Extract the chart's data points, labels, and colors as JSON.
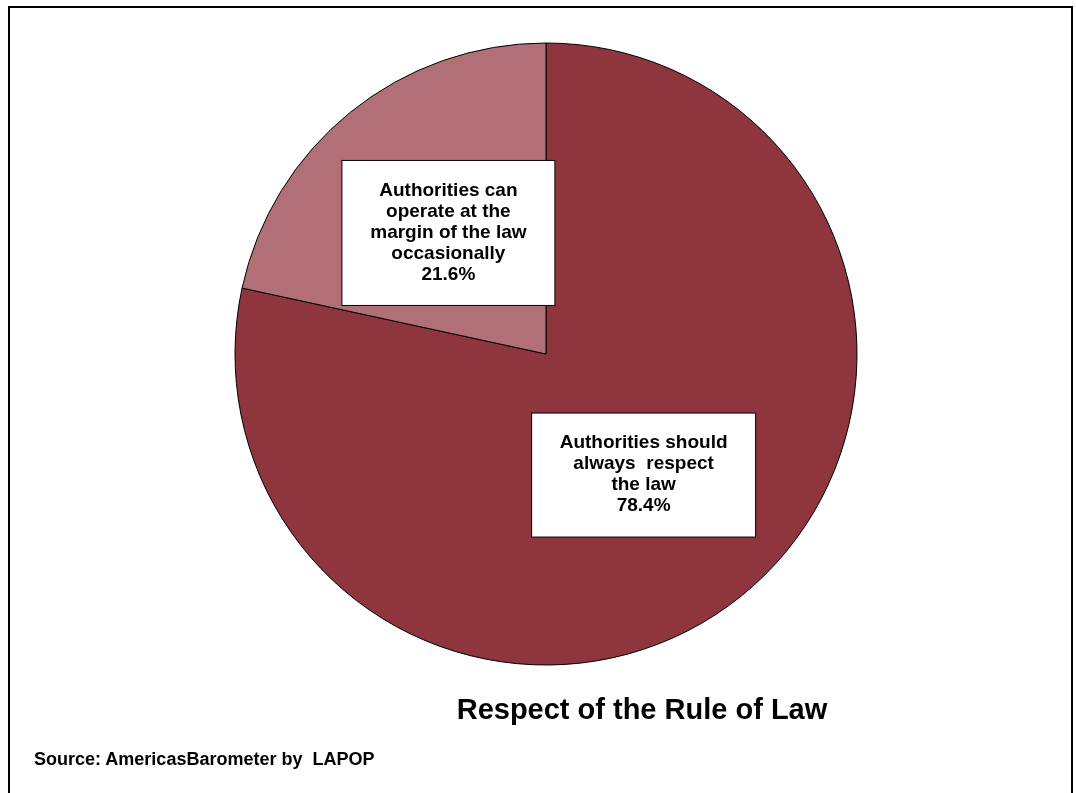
{
  "chart_data": {
    "type": "pie",
    "title": "Respect of the Rule of Law",
    "categories": [
      "Authorities should always  respect the law",
      "Authorities can operate at the margin of the law occasionally"
    ],
    "values": [
      78.4,
      21.6
    ],
    "colors": [
      "#8e353d",
      "#b07075"
    ],
    "value_labels": [
      "78.4%",
      "21.6%"
    ],
    "annotations": [
      "Source: AmericasBarometer by  LAPOP"
    ]
  }
}
